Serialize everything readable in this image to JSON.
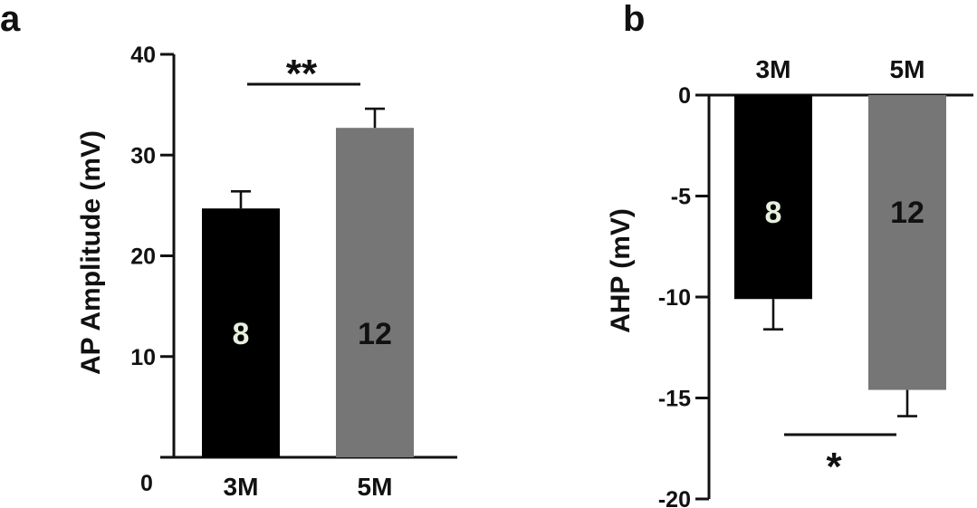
{
  "chart_data": [
    {
      "panel": "a",
      "type": "bar",
      "categories": [
        "3M",
        "5M"
      ],
      "values": [
        24.7,
        32.7
      ],
      "errors": [
        1.7,
        1.9
      ],
      "n_labels": [
        "8",
        "12"
      ],
      "bar_colors": [
        "#000000",
        "#767676"
      ],
      "n_label_colors": [
        "#e6f0dc",
        "#111111"
      ],
      "ylabel": "AP Amplitude (mV)",
      "xlabel": "",
      "ylim": [
        0,
        40
      ],
      "yticks": [
        10,
        20,
        30,
        40
      ],
      "zero_label": "0",
      "significance": "**",
      "grid": false
    },
    {
      "panel": "b",
      "type": "bar",
      "categories": [
        "3M",
        "5M"
      ],
      "values": [
        -10.1,
        -14.6
      ],
      "errors": [
        1.5,
        1.3
      ],
      "n_labels": [
        "8",
        "12"
      ],
      "bar_colors": [
        "#000000",
        "#767676"
      ],
      "n_label_colors": [
        "#e6f0dc",
        "#111111"
      ],
      "ylabel": "AHP (mV)",
      "xlabel": "",
      "ylim": [
        -20,
        0
      ],
      "yticks": [
        0,
        -5,
        -10,
        -15,
        -20
      ],
      "category_label_position": "top",
      "significance": "*",
      "grid": false
    }
  ]
}
